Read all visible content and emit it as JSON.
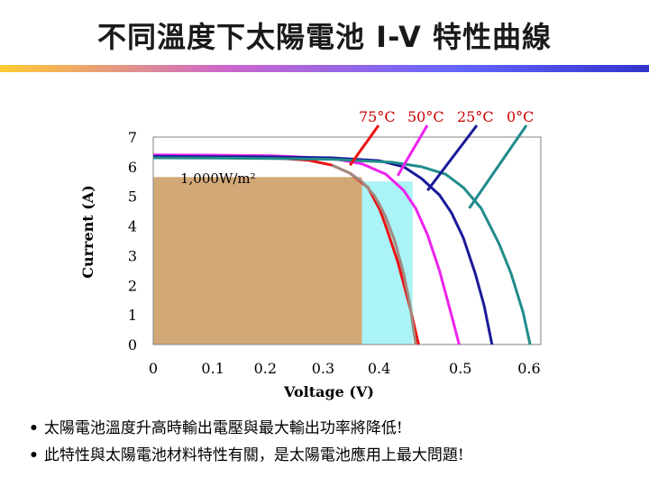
{
  "title": "不同溫度下太陽電池 I-V 特性曲線",
  "bullets": [
    "太陽電池溫度升高時輸出電壓與最大輸出功率將降低!",
    "此特性與太陽電池材料特性有關，是太陽電池應用上最大問題!"
  ],
  "chart_data": {
    "type": "line",
    "xlabel": "Voltage (V)",
    "ylabel": "Current (A)",
    "xlim": [
      0,
      0.65
    ],
    "ylim": [
      0,
      7
    ],
    "x_ticks": [
      "0",
      "0.1",
      "0.2",
      "0.3",
      "0.4",
      "0.5",
      "0.6"
    ],
    "y_ticks": [
      "0",
      "1",
      "2",
      "3",
      "4",
      "5",
      "6",
      "7"
    ],
    "grid": false,
    "annotation": "1,000W/m²",
    "legend_labels": [
      "75°C",
      "50°C",
      "25°C",
      "0°C"
    ],
    "series": [
      {
        "name": "75°C",
        "color": "#ee1111",
        "x": [
          0,
          0.1,
          0.2,
          0.26,
          0.3,
          0.33,
          0.36,
          0.38,
          0.39,
          0.41,
          0.43,
          0.445
        ],
        "y": [
          6.35,
          6.34,
          6.3,
          6.22,
          6.05,
          5.78,
          5.3,
          4.55,
          4.0,
          2.8,
          1.3,
          0
        ]
      },
      {
        "name": "50°C",
        "color": "#ee22ee",
        "x": [
          0,
          0.1,
          0.2,
          0.3,
          0.35,
          0.39,
          0.42,
          0.44,
          0.46,
          0.48,
          0.5,
          0.513
        ],
        "y": [
          6.4,
          6.39,
          6.37,
          6.28,
          6.1,
          5.75,
          5.2,
          4.6,
          3.7,
          2.5,
          1.0,
          0
        ]
      },
      {
        "name": "25°C",
        "color": "#1a1a99",
        "x": [
          0,
          0.1,
          0.2,
          0.3,
          0.38,
          0.42,
          0.45,
          0.48,
          0.5,
          0.52,
          0.54,
          0.555,
          0.568
        ],
        "y": [
          6.35,
          6.34,
          6.33,
          6.3,
          6.2,
          6.0,
          5.6,
          5.05,
          4.45,
          3.6,
          2.4,
          1.3,
          0
        ]
      },
      {
        "name": "0°C",
        "color": "#228b8b",
        "x": [
          0,
          0.1,
          0.2,
          0.3,
          0.4,
          0.45,
          0.49,
          0.52,
          0.55,
          0.58,
          0.6,
          0.62,
          0.632
        ],
        "y": [
          6.3,
          6.29,
          6.28,
          6.25,
          6.15,
          6.0,
          5.75,
          5.3,
          4.6,
          3.4,
          2.4,
          1.1,
          0
        ]
      },
      {
        "name": "",
        "color": "#a08a80",
        "x": [
          0.3,
          0.33,
          0.35,
          0.37,
          0.38,
          0.39,
          0.405,
          0.42,
          0.43,
          0.44
        ],
        "y": [
          6.05,
          5.78,
          5.5,
          5.05,
          4.7,
          4.3,
          3.5,
          2.4,
          1.4,
          0
        ]
      }
    ],
    "max_power_regions": [
      {
        "vmp": 0.35,
        "imp": 5.65,
        "color": "#d2a877"
      },
      {
        "vmp": 0.435,
        "imp": 5.5,
        "color": "#aaf3f6"
      }
    ]
  }
}
